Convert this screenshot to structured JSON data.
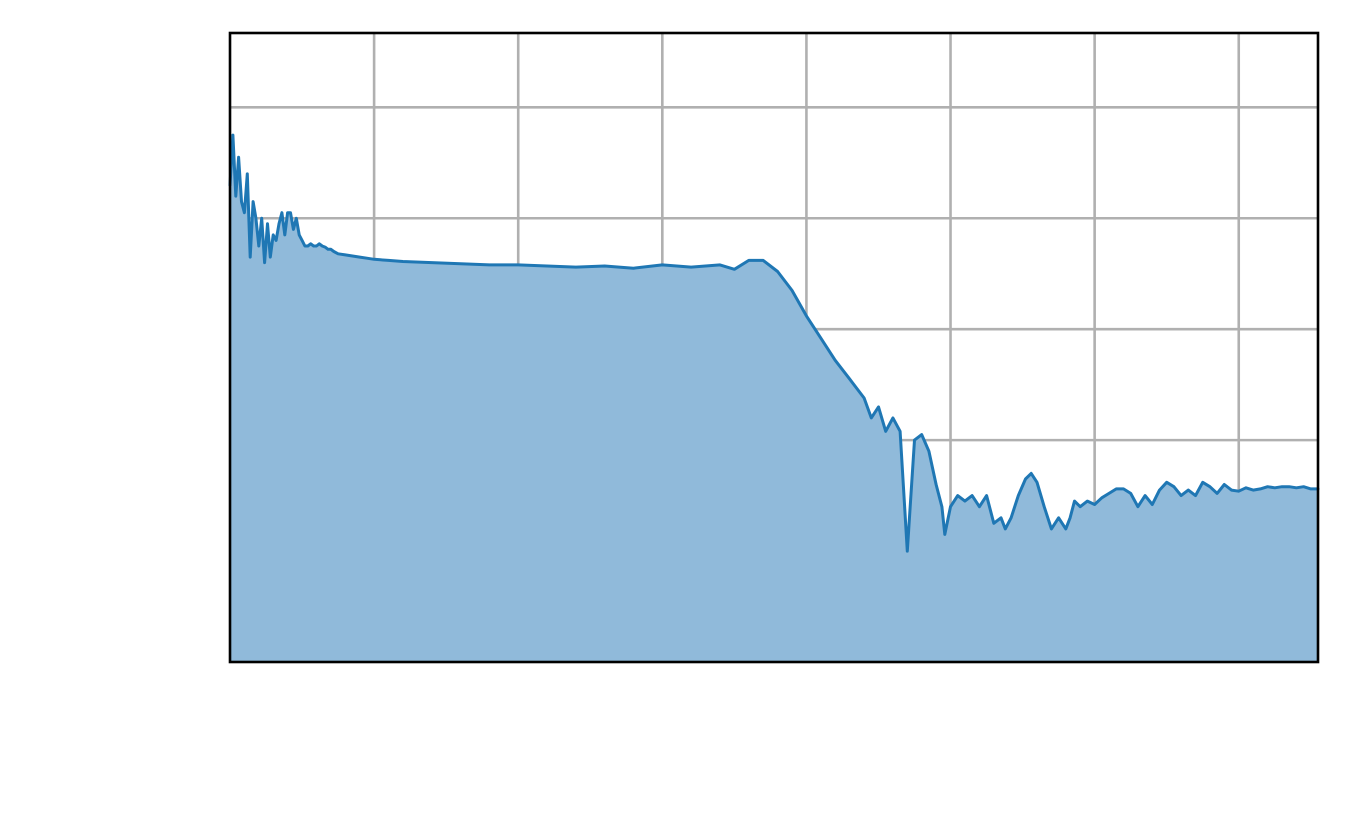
{
  "chart_data": {
    "type": "area",
    "xlabel": "",
    "ylabel": "",
    "xlim": [
      0,
      7.55
    ],
    "ylim": [
      0,
      5.67
    ],
    "xticks": [
      1,
      2,
      3,
      4,
      5,
      6,
      7
    ],
    "yticks": [
      1,
      2,
      3,
      4,
      5
    ],
    "grid": true,
    "legend": "none",
    "colors": {
      "line": "#1f77b4",
      "fill": "#90bada",
      "grid": "#b0b0b0",
      "frame": "#000000"
    },
    "series": [
      {
        "x": [
          0,
          0.02,
          0.04,
          0.06,
          0.08,
          0.1,
          0.12,
          0.14,
          0.16,
          0.18,
          0.2,
          0.22,
          0.24,
          0.26,
          0.28,
          0.3,
          0.32,
          0.34,
          0.36,
          0.38,
          0.4,
          0.42,
          0.44,
          0.46,
          0.48,
          0.5,
          0.52,
          0.54,
          0.56,
          0.58,
          0.6,
          0.62,
          0.64,
          0.66,
          0.68,
          0.7,
          0.72,
          0.75,
          0.8,
          0.85,
          0.9,
          0.95,
          1.0,
          1.1,
          1.2,
          1.4,
          1.6,
          1.8,
          2.0,
          2.2,
          2.4,
          2.6,
          2.8,
          3.0,
          3.2,
          3.4,
          3.5,
          3.6,
          3.7,
          3.8,
          3.9,
          4.0,
          4.1,
          4.2,
          4.3,
          4.4,
          4.45,
          4.5,
          4.55,
          4.6,
          4.65,
          4.7,
          4.75,
          4.8,
          4.85,
          4.9,
          4.94,
          4.96,
          5.0,
          5.05,
          5.1,
          5.15,
          5.2,
          5.25,
          5.3,
          5.35,
          5.38,
          5.42,
          5.47,
          5.52,
          5.56,
          5.6,
          5.65,
          5.7,
          5.75,
          5.8,
          5.83,
          5.86,
          5.9,
          5.95,
          6.0,
          6.05,
          6.1,
          6.15,
          6.2,
          6.25,
          6.3,
          6.35,
          6.4,
          6.45,
          6.5,
          6.55,
          6.6,
          6.65,
          6.7,
          6.75,
          6.8,
          6.85,
          6.9,
          6.95,
          7.0,
          7.05,
          7.1,
          7.15,
          7.2,
          7.25,
          7.3,
          7.35,
          7.4,
          7.45,
          7.5,
          7.55
        ],
        "y": [
          4.3,
          4.75,
          4.2,
          4.55,
          4.15,
          4.05,
          4.4,
          3.65,
          4.15,
          4.0,
          3.75,
          4.0,
          3.6,
          3.95,
          3.65,
          3.85,
          3.8,
          3.95,
          4.05,
          3.85,
          4.05,
          4.05,
          3.9,
          4.0,
          3.85,
          3.8,
          3.75,
          3.75,
          3.77,
          3.75,
          3.75,
          3.77,
          3.75,
          3.74,
          3.72,
          3.72,
          3.7,
          3.68,
          3.67,
          3.66,
          3.65,
          3.64,
          3.63,
          3.62,
          3.61,
          3.6,
          3.59,
          3.58,
          3.58,
          3.57,
          3.56,
          3.57,
          3.55,
          3.58,
          3.56,
          3.58,
          3.54,
          3.62,
          3.62,
          3.52,
          3.35,
          3.12,
          2.92,
          2.72,
          2.55,
          2.38,
          2.2,
          2.3,
          2.08,
          2.2,
          2.08,
          1.0,
          2.0,
          2.05,
          1.9,
          1.6,
          1.4,
          1.15,
          1.4,
          1.5,
          1.45,
          1.5,
          1.4,
          1.5,
          1.25,
          1.3,
          1.2,
          1.3,
          1.5,
          1.65,
          1.7,
          1.62,
          1.4,
          1.2,
          1.3,
          1.2,
          1.3,
          1.45,
          1.4,
          1.45,
          1.42,
          1.48,
          1.52,
          1.56,
          1.56,
          1.52,
          1.4,
          1.5,
          1.42,
          1.55,
          1.62,
          1.58,
          1.5,
          1.55,
          1.5,
          1.62,
          1.58,
          1.52,
          1.6,
          1.55,
          1.54,
          1.57,
          1.55,
          1.56,
          1.58,
          1.57,
          1.58,
          1.58,
          1.57,
          1.58,
          1.56,
          1.56
        ]
      }
    ]
  }
}
